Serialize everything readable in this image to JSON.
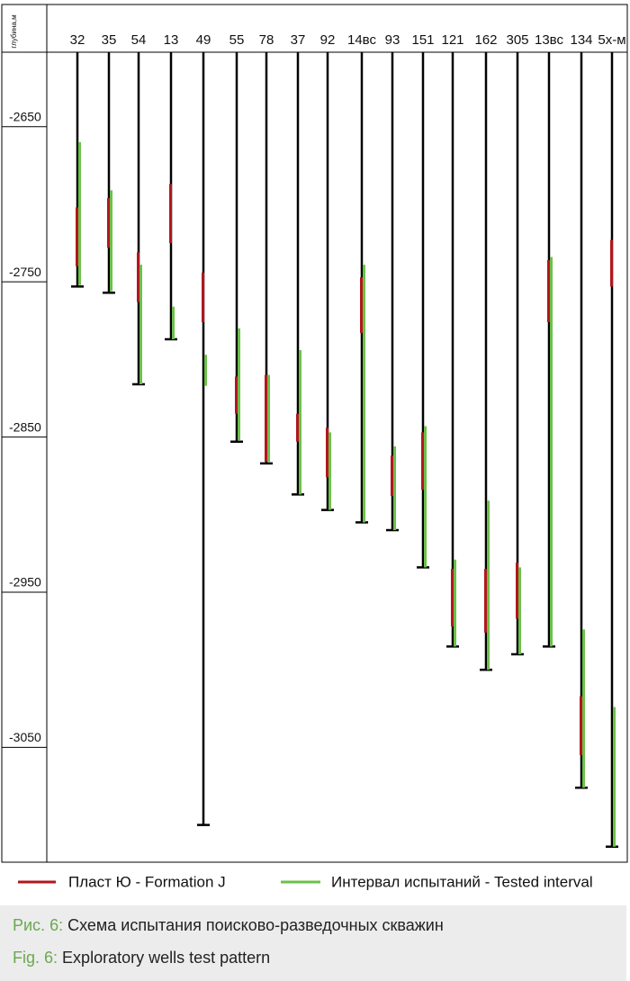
{
  "chart_data": {
    "type": "wells",
    "y_label": "глубина,м",
    "categories": [
      "32",
      "35",
      "54",
      "13",
      "49",
      "55",
      "78",
      "37",
      "92",
      "14вс",
      "93",
      "151",
      "121",
      "162",
      "305",
      "13вс",
      "134",
      "5х-м"
    ],
    "values": [
      -2753,
      -2757,
      -2816,
      -2787,
      -3100,
      -2853,
      -2867,
      -2887,
      -2897,
      -2905,
      -2910,
      -2934,
      -2985,
      -3000,
      -2990,
      -2985,
      -3076,
      -3114
    ],
    "series": [
      {
        "name": "Пласт Ю - Formation J",
        "color": "#b3161c",
        "values": [
          [
            -2702,
            -2740
          ],
          [
            -2696,
            -2728
          ],
          [
            -2731,
            -2763
          ],
          [
            -2687,
            -2725
          ],
          [
            -2744,
            -2776
          ],
          [
            -2811,
            -2835
          ],
          [
            -2810,
            -2866
          ],
          [
            -2835,
            -2853
          ],
          [
            -2844,
            -2876
          ],
          [
            -2747,
            -2783
          ],
          [
            -2862,
            -2888
          ],
          [
            -2847,
            -2884
          ],
          [
            -2935,
            -2972
          ],
          [
            -2935,
            -2976
          ],
          [
            -2931,
            -2967
          ],
          [
            -2736,
            -2776
          ],
          [
            -3017,
            -3055
          ],
          [
            -2723,
            -2753
          ]
        ]
      },
      {
        "name": "Интервал испытаний - Tested interval",
        "color": "#6cc04a",
        "values": [
          [
            -2660,
            -2752
          ],
          [
            -2691,
            -2756
          ],
          [
            -2739,
            -2816
          ],
          [
            -2766,
            -2787
          ],
          [
            -2797,
            -2817
          ],
          [
            -2780,
            -2852
          ],
          [
            -2810,
            -2866
          ],
          [
            -2794,
            -2887
          ],
          [
            -2847,
            -2897
          ],
          [
            -2739,
            -2905
          ],
          [
            -2856,
            -2910
          ],
          [
            -2843,
            -2934
          ],
          [
            -2929,
            -2985
          ],
          [
            -2891,
            -3000
          ],
          [
            -2934,
            -2990
          ],
          [
            -2734,
            -2985
          ],
          [
            -2974,
            -3076
          ],
          [
            -3024,
            -3114
          ]
        ]
      }
    ],
    "ylim": [
      -3124,
      -2602
    ],
    "yticks": [
      -2650,
      -2750,
      -2850,
      -2950,
      -3050
    ],
    "color": "#000000"
  },
  "caption": [
    {
      "label": "Рис. 6:",
      "text": "Схема испытания поисково-разведочных скважин"
    },
    {
      "label": "Fig. 6:",
      "text": "Exploratory wells test pattern"
    }
  ]
}
